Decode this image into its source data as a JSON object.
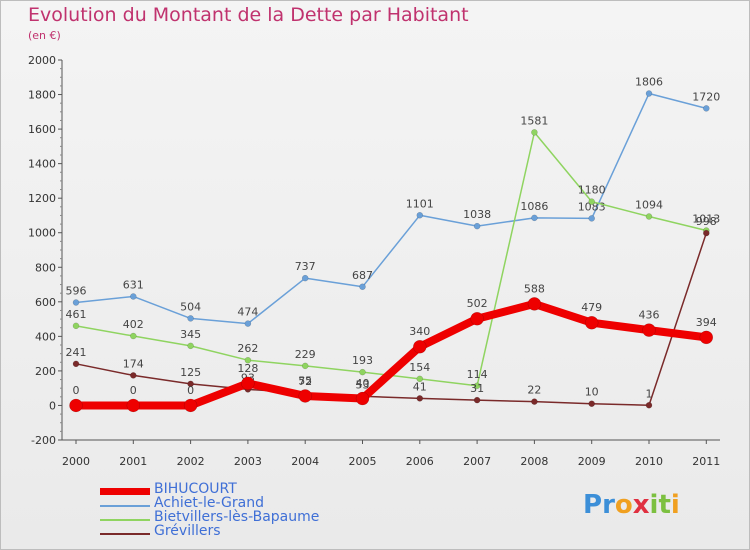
{
  "title": "Evolution du Montant de la Dette par Habitant",
  "subtitle": "(en €)",
  "logo": {
    "text": "Proxiti",
    "letters": [
      "P",
      "r",
      "o",
      "x",
      "i",
      "t",
      "i"
    ],
    "colors": [
      "#3c8fd8",
      "#3c8fd8",
      "#f0a020",
      "#e03040",
      "#7cc040",
      "#7cc040",
      "#f0a020"
    ]
  },
  "chart_data": {
    "type": "line",
    "x": [
      "2000",
      "2001",
      "2002",
      "2003",
      "2004",
      "2005",
      "2006",
      "2007",
      "2008",
      "2009",
      "2010",
      "2011"
    ],
    "ylim": [
      -200,
      2000
    ],
    "yticks": [
      "-200",
      "0",
      "200",
      "400",
      "600",
      "800",
      "1000",
      "1200",
      "1400",
      "1600",
      "1800",
      "2000"
    ],
    "grid": false,
    "legend_position": "bottom-left",
    "series": [
      {
        "name": "Achiet-le-Grand",
        "color": "#6aa0d8",
        "values": [
          596,
          631,
          504,
          474,
          737,
          687,
          1101,
          1038,
          1086,
          1083,
          1806,
          1720
        ],
        "labels": [
          "596",
          "631",
          "504",
          "474",
          "737",
          "687",
          "1101",
          "1038",
          "1086",
          "1083",
          "1806",
          "1720"
        ]
      },
      {
        "name": "Bietvillers-lès-Bapaume",
        "color": "#8fd460",
        "values": [
          461,
          402,
          345,
          262,
          229,
          193,
          154,
          114,
          1581,
          1180,
          1094,
          1013
        ],
        "labels": [
          "461",
          "402",
          "345",
          "262",
          "229",
          "193",
          "154",
          "114",
          "1581",
          "1180",
          "1094",
          "1013"
        ]
      },
      {
        "name": "Grévillers",
        "color": "#7a2a2a",
        "values": [
          241,
          174,
          125,
          93,
          72,
          53,
          41,
          31,
          22,
          10,
          1,
          998
        ],
        "labels": [
          "241",
          "174",
          "125",
          "93",
          "72",
          "53",
          "41",
          "31",
          "22",
          "10",
          "1",
          "998"
        ]
      },
      {
        "name": "BIHUCOURT",
        "color": "#ee0000",
        "values": [
          0,
          0,
          0,
          128,
          55,
          40,
          340,
          502,
          588,
          479,
          436,
          394
        ],
        "labels": [
          "0",
          "0",
          "0",
          "128",
          "55",
          "40",
          "340",
          "502",
          "588",
          "479",
          "436",
          "394"
        ]
      }
    ]
  }
}
